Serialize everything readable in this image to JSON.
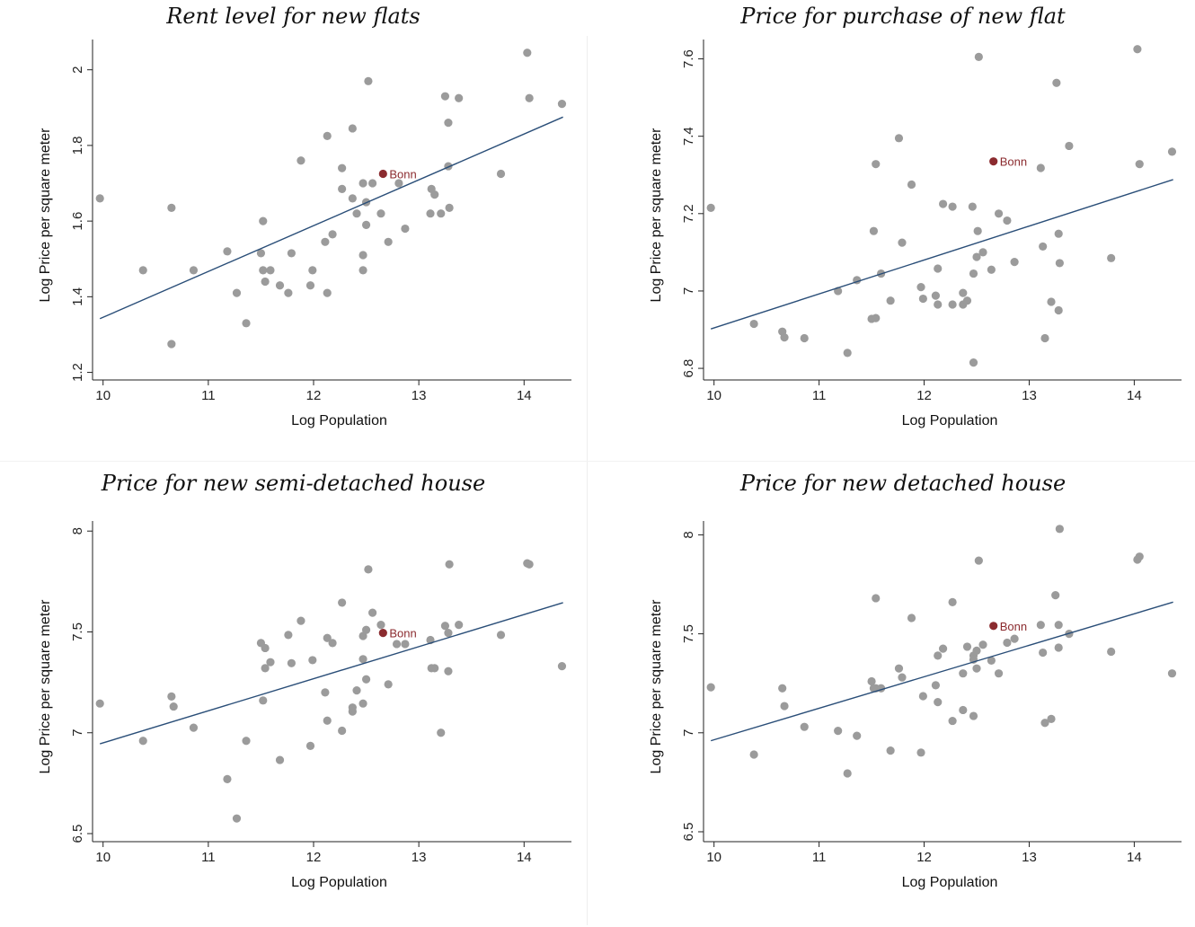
{
  "colors": {
    "point": "#9b9b9b",
    "highlight": "#8b2b2f",
    "fit_line": "#2a4e78",
    "axis": "#222222"
  },
  "chart_data": [
    {
      "type": "scatter",
      "title": "Rent level for new flats",
      "xlabel": "Log Population",
      "ylabel": "Log Price per square meter",
      "xlim": [
        9.9,
        14.45
      ],
      "ylim": [
        1.18,
        2.08
      ],
      "xticks": [
        10,
        11,
        12,
        13,
        14
      ],
      "yticks": [
        1.2,
        1.4,
        1.6,
        1.8,
        2
      ],
      "ytick_labels": [
        "1.2",
        "1.4",
        "1.6",
        "1.8",
        "2"
      ],
      "highlight": {
        "label": "Bonn",
        "x": 12.66,
        "y": 1.725
      },
      "fit_line": {
        "x": [
          9.97,
          14.37
        ],
        "y": [
          1.342,
          1.875
        ]
      },
      "points": [
        [
          9.97,
          1.66
        ],
        [
          10.38,
          1.47
        ],
        [
          10.65,
          1.635
        ],
        [
          10.65,
          1.275
        ],
        [
          10.86,
          1.47
        ],
        [
          11.18,
          1.52
        ],
        [
          11.27,
          1.41
        ],
        [
          11.36,
          1.33
        ],
        [
          11.5,
          1.515
        ],
        [
          11.52,
          1.6
        ],
        [
          11.52,
          1.47
        ],
        [
          11.54,
          1.44
        ],
        [
          11.59,
          1.47
        ],
        [
          11.68,
          1.43
        ],
        [
          11.76,
          1.41
        ],
        [
          11.79,
          1.515
        ],
        [
          11.88,
          1.76
        ],
        [
          11.97,
          1.43
        ],
        [
          11.99,
          1.47
        ],
        [
          12.11,
          1.545
        ],
        [
          12.13,
          1.825
        ],
        [
          12.13,
          1.41
        ],
        [
          12.18,
          1.565
        ],
        [
          12.27,
          1.74
        ],
        [
          12.27,
          1.685
        ],
        [
          12.37,
          1.845
        ],
        [
          12.37,
          1.66
        ],
        [
          12.41,
          1.62
        ],
        [
          12.47,
          1.7
        ],
        [
          12.47,
          1.51
        ],
        [
          12.47,
          1.47
        ],
        [
          12.5,
          1.65
        ],
        [
          12.5,
          1.59
        ],
        [
          12.52,
          1.97
        ],
        [
          12.56,
          1.7
        ],
        [
          12.64,
          1.62
        ],
        [
          12.71,
          1.545
        ],
        [
          12.81,
          1.7
        ],
        [
          12.87,
          1.58
        ],
        [
          13.11,
          1.62
        ],
        [
          13.12,
          1.685
        ],
        [
          13.15,
          1.67
        ],
        [
          13.21,
          1.62
        ],
        [
          13.25,
          1.93
        ],
        [
          13.28,
          1.745
        ],
        [
          13.28,
          1.86
        ],
        [
          13.29,
          1.635
        ],
        [
          13.38,
          1.925
        ],
        [
          13.78,
          1.725
        ],
        [
          14.03,
          2.045
        ],
        [
          14.05,
          1.925
        ],
        [
          14.36,
          1.91
        ]
      ]
    },
    {
      "type": "scatter",
      "title": "Price for purchase of new flat",
      "xlabel": "Log Population",
      "ylabel": "Log Price per square meter",
      "xlim": [
        9.9,
        14.45
      ],
      "ylim": [
        6.77,
        7.65
      ],
      "xticks": [
        10,
        11,
        12,
        13,
        14
      ],
      "yticks": [
        6.8,
        7,
        7.2,
        7.4,
        7.6
      ],
      "ytick_labels": [
        "6.8",
        "7",
        "7.2",
        "7.4",
        "7.6"
      ],
      "highlight": {
        "label": "Bonn",
        "x": 12.66,
        "y": 7.335
      },
      "fit_line": {
        "x": [
          9.97,
          14.37
        ],
        "y": [
          6.902,
          7.288
        ]
      },
      "points": [
        [
          9.97,
          7.215
        ],
        [
          10.38,
          6.915
        ],
        [
          10.65,
          6.895
        ],
        [
          10.67,
          6.88
        ],
        [
          10.86,
          6.878
        ],
        [
          11.18,
          7.0
        ],
        [
          11.27,
          6.84
        ],
        [
          11.36,
          7.028
        ],
        [
          11.5,
          6.928
        ],
        [
          11.52,
          7.155
        ],
        [
          11.54,
          7.328
        ],
        [
          11.54,
          6.93
        ],
        [
          11.59,
          7.045
        ],
        [
          11.68,
          6.975
        ],
        [
          11.76,
          7.395
        ],
        [
          11.79,
          7.125
        ],
        [
          11.88,
          7.275
        ],
        [
          11.97,
          7.01
        ],
        [
          11.99,
          6.98
        ],
        [
          12.11,
          6.988
        ],
        [
          12.13,
          7.058
        ],
        [
          12.13,
          6.965
        ],
        [
          12.18,
          7.225
        ],
        [
          12.27,
          7.218
        ],
        [
          12.27,
          6.965
        ],
        [
          12.37,
          6.995
        ],
        [
          12.37,
          6.965
        ],
        [
          12.41,
          6.975
        ],
        [
          12.46,
          7.218
        ],
        [
          12.47,
          7.045
        ],
        [
          12.47,
          6.815
        ],
        [
          12.5,
          7.088
        ],
        [
          12.51,
          7.155
        ],
        [
          12.52,
          7.605
        ],
        [
          12.56,
          7.1
        ],
        [
          12.64,
          7.055
        ],
        [
          12.71,
          7.2
        ],
        [
          12.79,
          7.182
        ],
        [
          12.86,
          7.075
        ],
        [
          13.11,
          7.318
        ],
        [
          13.13,
          7.115
        ],
        [
          13.15,
          6.878
        ],
        [
          13.21,
          6.972
        ],
        [
          13.26,
          7.538
        ],
        [
          13.28,
          6.95
        ],
        [
          13.28,
          7.148
        ],
        [
          13.29,
          7.072
        ],
        [
          13.38,
          7.375
        ],
        [
          13.78,
          7.085
        ],
        [
          14.03,
          7.625
        ],
        [
          14.05,
          7.328
        ],
        [
          14.36,
          7.36
        ]
      ]
    },
    {
      "type": "scatter",
      "title": "Price for new semi-detached house",
      "xlabel": "Log Population",
      "ylabel": "Log Price per square meter",
      "xlim": [
        9.9,
        14.45
      ],
      "ylim": [
        6.46,
        8.05
      ],
      "xticks": [
        10,
        11,
        12,
        13,
        14
      ],
      "yticks": [
        6.5,
        7,
        7.5,
        8
      ],
      "ytick_labels": [
        "6.5",
        "7",
        "7.5",
        "8"
      ],
      "highlight": {
        "label": "Bonn",
        "x": 12.66,
        "y": 7.495
      },
      "fit_line": {
        "x": [
          9.97,
          14.37
        ],
        "y": [
          6.945,
          7.645
        ]
      },
      "points": [
        [
          9.97,
          7.145
        ],
        [
          10.38,
          6.96
        ],
        [
          10.65,
          7.18
        ],
        [
          10.67,
          7.13
        ],
        [
          10.86,
          7.025
        ],
        [
          11.18,
          6.77
        ],
        [
          11.27,
          6.575
        ],
        [
          11.36,
          6.96
        ],
        [
          11.5,
          7.445
        ],
        [
          11.52,
          7.16
        ],
        [
          11.54,
          7.42
        ],
        [
          11.54,
          7.32
        ],
        [
          11.59,
          7.35
        ],
        [
          11.68,
          6.865
        ],
        [
          11.76,
          7.485
        ],
        [
          11.79,
          7.345
        ],
        [
          11.88,
          7.555
        ],
        [
          11.97,
          6.935
        ],
        [
          11.99,
          7.36
        ],
        [
          12.11,
          7.2
        ],
        [
          12.13,
          7.06
        ],
        [
          12.13,
          7.47
        ],
        [
          12.18,
          7.445
        ],
        [
          12.27,
          7.645
        ],
        [
          12.27,
          7.01
        ],
        [
          12.37,
          7.105
        ],
        [
          12.37,
          7.125
        ],
        [
          12.41,
          7.21
        ],
        [
          12.47,
          7.48
        ],
        [
          12.47,
          7.365
        ],
        [
          12.47,
          7.145
        ],
        [
          12.5,
          7.51
        ],
        [
          12.5,
          7.265
        ],
        [
          12.52,
          7.81
        ],
        [
          12.56,
          7.595
        ],
        [
          12.64,
          7.535
        ],
        [
          12.71,
          7.24
        ],
        [
          12.79,
          7.44
        ],
        [
          12.87,
          7.44
        ],
        [
          13.11,
          7.46
        ],
        [
          13.12,
          7.32
        ],
        [
          13.15,
          7.32
        ],
        [
          13.21,
          7.0
        ],
        [
          13.25,
          7.53
        ],
        [
          13.28,
          7.305
        ],
        [
          13.28,
          7.495
        ],
        [
          13.29,
          7.835
        ],
        [
          13.38,
          7.535
        ],
        [
          13.78,
          7.485
        ],
        [
          14.03,
          7.84
        ],
        [
          14.05,
          7.835
        ],
        [
          14.36,
          7.33
        ]
      ]
    },
    {
      "type": "scatter",
      "title": "Price for new detached house",
      "xlabel": "Log Population",
      "ylabel": "Log Price per square meter",
      "xlim": [
        9.9,
        14.45
      ],
      "ylim": [
        6.45,
        8.07
      ],
      "xticks": [
        10,
        11,
        12,
        13,
        14
      ],
      "yticks": [
        6.5,
        7,
        7.5,
        8
      ],
      "ytick_labels": [
        "6.5",
        "7",
        "7.5",
        "8"
      ],
      "highlight": {
        "label": "Bonn",
        "x": 12.66,
        "y": 7.54
      },
      "fit_line": {
        "x": [
          9.97,
          14.37
        ],
        "y": [
          6.96,
          7.66
        ]
      },
      "points": [
        [
          9.97,
          7.23
        ],
        [
          10.38,
          6.89
        ],
        [
          10.65,
          7.225
        ],
        [
          10.67,
          7.135
        ],
        [
          10.86,
          7.03
        ],
        [
          11.18,
          7.01
        ],
        [
          11.27,
          6.795
        ],
        [
          11.36,
          6.985
        ],
        [
          11.5,
          7.26
        ],
        [
          11.52,
          7.225
        ],
        [
          11.54,
          7.68
        ],
        [
          11.54,
          7.225
        ],
        [
          11.59,
          7.225
        ],
        [
          11.68,
          6.91
        ],
        [
          11.76,
          7.325
        ],
        [
          11.79,
          7.28
        ],
        [
          11.88,
          7.58
        ],
        [
          11.97,
          6.9
        ],
        [
          11.99,
          7.185
        ],
        [
          12.11,
          7.24
        ],
        [
          12.13,
          7.155
        ],
        [
          12.13,
          7.39
        ],
        [
          12.18,
          7.425
        ],
        [
          12.27,
          7.66
        ],
        [
          12.27,
          7.06
        ],
        [
          12.37,
          7.115
        ],
        [
          12.37,
          7.3
        ],
        [
          12.41,
          7.435
        ],
        [
          12.47,
          7.39
        ],
        [
          12.47,
          7.37
        ],
        [
          12.47,
          7.085
        ],
        [
          12.5,
          7.415
        ],
        [
          12.5,
          7.325
        ],
        [
          12.52,
          7.87
        ],
        [
          12.56,
          7.445
        ],
        [
          12.64,
          7.365
        ],
        [
          12.71,
          7.3
        ],
        [
          12.79,
          7.455
        ],
        [
          12.86,
          7.475
        ],
        [
          13.11,
          7.545
        ],
        [
          13.13,
          7.405
        ],
        [
          13.15,
          7.05
        ],
        [
          13.21,
          7.07
        ],
        [
          13.25,
          7.695
        ],
        [
          13.28,
          7.43
        ],
        [
          13.28,
          7.545
        ],
        [
          13.29,
          8.03
        ],
        [
          13.38,
          7.5
        ],
        [
          13.78,
          7.41
        ],
        [
          14.03,
          7.875
        ],
        [
          14.05,
          7.89
        ],
        [
          14.36,
          7.3
        ]
      ]
    }
  ]
}
